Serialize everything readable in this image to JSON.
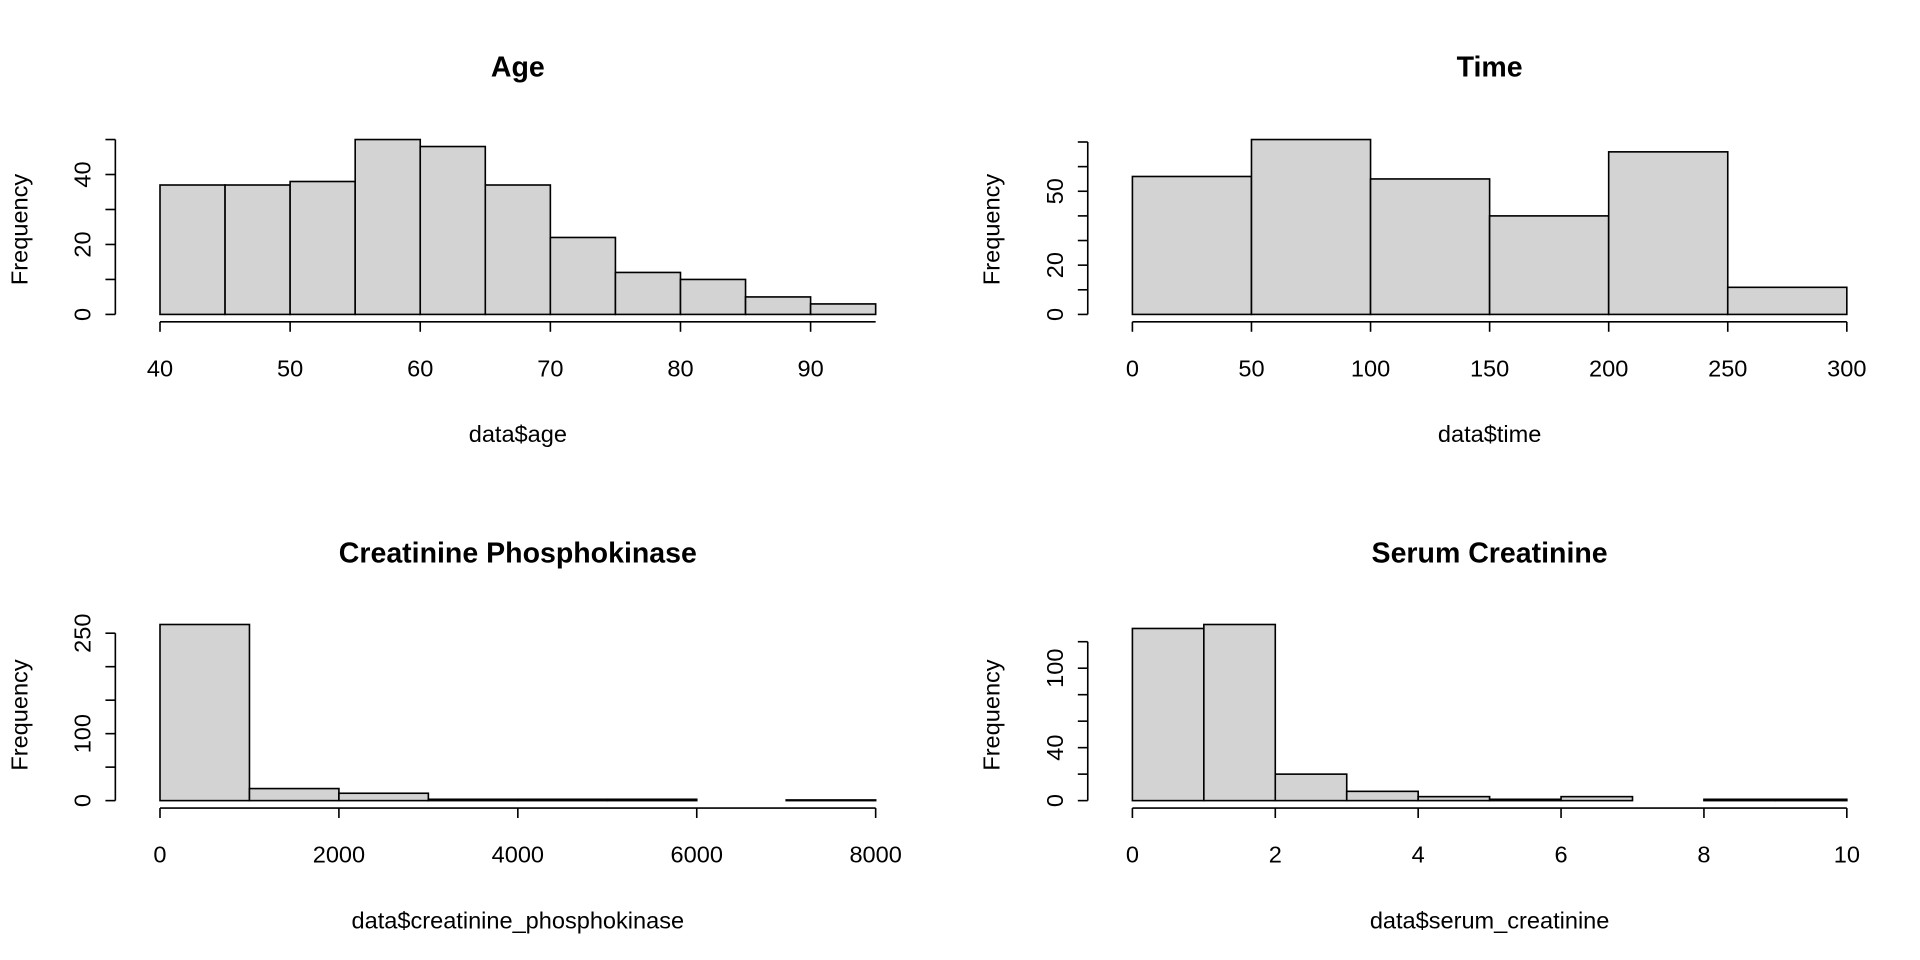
{
  "chart_data": [
    {
      "type": "histogram",
      "title": "Age",
      "xlabel": "data$age",
      "ylabel": "Frequency",
      "color": "#d3d3d3",
      "bins": [
        40,
        45,
        50,
        55,
        60,
        65,
        70,
        75,
        80,
        85,
        90,
        95
      ],
      "values": [
        37,
        37,
        38,
        50,
        48,
        37,
        22,
        12,
        10,
        5,
        3
      ],
      "xlim": [
        40,
        95
      ],
      "xticks": [
        40,
        50,
        60,
        70,
        80,
        90
      ],
      "ylim": [
        0,
        50
      ],
      "yticks": [
        0,
        20,
        40
      ],
      "yticks_unlabeled": [
        10,
        30,
        50
      ]
    },
    {
      "type": "histogram",
      "title": "Time",
      "xlabel": "data$time",
      "ylabel": "Frequency",
      "color": "#d3d3d3",
      "bins": [
        0,
        50,
        100,
        150,
        200,
        250,
        300
      ],
      "values": [
        56,
        71,
        55,
        40,
        66,
        11
      ],
      "xlim": [
        0,
        300
      ],
      "xticks": [
        0,
        50,
        100,
        150,
        200,
        250,
        300
      ],
      "ylim": [
        0,
        71
      ],
      "yticks": [
        0,
        20,
        50
      ],
      "yticks_unlabeled": [
        10,
        30,
        40,
        60,
        70
      ]
    },
    {
      "type": "histogram",
      "title": "Creatinine Phosphokinase",
      "xlabel": "data$creatinine_phosphokinase",
      "ylabel": "Frequency",
      "color": "#d3d3d3",
      "bins": [
        0,
        1000,
        2000,
        3000,
        4000,
        5000,
        6000,
        7000,
        8000
      ],
      "values": [
        263,
        18,
        11,
        2,
        2,
        2,
        0,
        1
      ],
      "xlim": [
        0,
        8000
      ],
      "xticks": [
        0,
        2000,
        4000,
        6000,
        8000
      ],
      "ylim": [
        0,
        263
      ],
      "yticks": [
        0,
        100,
        250
      ],
      "yticks_unlabeled": [
        50,
        150,
        200
      ]
    },
    {
      "type": "histogram",
      "title": "Serum Creatinine",
      "xlabel": "data$serum_creatinine",
      "ylabel": "Frequency",
      "color": "#d3d3d3",
      "bins": [
        0,
        1,
        2,
        3,
        4,
        5,
        6,
        7,
        8,
        9,
        10
      ],
      "values": [
        130,
        133,
        20,
        7,
        3,
        1,
        3,
        0,
        1,
        1
      ],
      "xlim": [
        0,
        10
      ],
      "xticks": [
        0,
        2,
        4,
        6,
        8,
        10
      ],
      "ylim": [
        0,
        133
      ],
      "yticks": [
        0,
        40,
        100
      ],
      "yticks_unlabeled": [
        20,
        60,
        80,
        120
      ]
    }
  ]
}
